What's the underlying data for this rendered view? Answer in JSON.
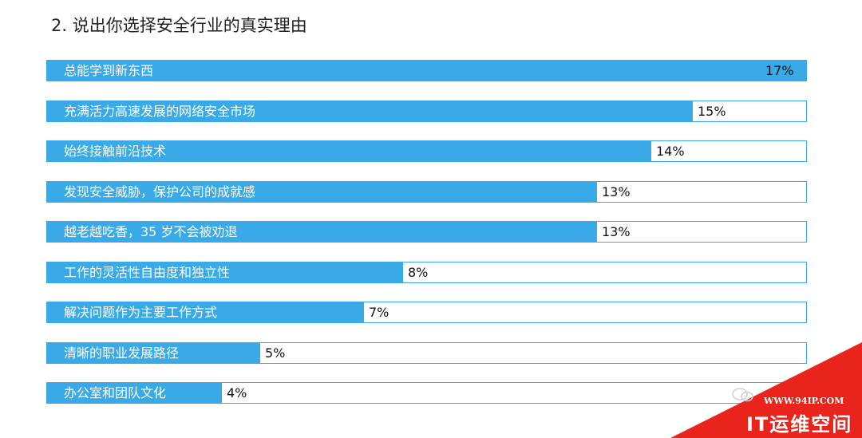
{
  "chart_data": {
    "type": "bar",
    "orientation": "horizontal",
    "title": "2. 说出你选择安全行业的真实理由",
    "categories": [
      "总能学到新东西",
      "充满活力高速发展的网络安全市场",
      "始终接触前沿技术",
      "发现安全威胁，保护公司的成就感",
      "越老越吃香，35 岁不会被劝退",
      "工作的灵活性自由度和独立性",
      "解决问题作为主要工作方式",
      "清晰的职业发展路径",
      "办公室和团队文化"
    ],
    "values": [
      17,
      15,
      14,
      13,
      13,
      8,
      7,
      5,
      4
    ],
    "value_labels": [
      "17%",
      "15%",
      "14%",
      "13%",
      "13%",
      "8%",
      "7%",
      "5%",
      "4%"
    ],
    "xlim": [
      0,
      17
    ],
    "grid": false,
    "legend": false,
    "bar_color": "#3aa9e8"
  },
  "watermark": {
    "url": "WWW.94IP.COM",
    "brand": "IT运维空间",
    "icon": "wechat-icon",
    "color": "#e8241c"
  }
}
